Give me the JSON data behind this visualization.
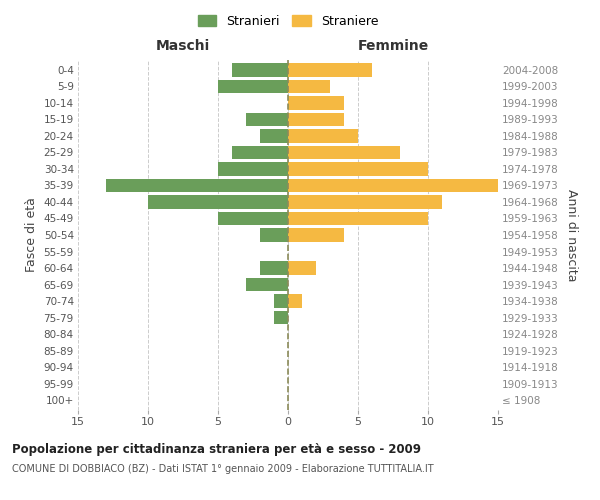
{
  "age_groups": [
    "100+",
    "95-99",
    "90-94",
    "85-89",
    "80-84",
    "75-79",
    "70-74",
    "65-69",
    "60-64",
    "55-59",
    "50-54",
    "45-49",
    "40-44",
    "35-39",
    "30-34",
    "25-29",
    "20-24",
    "15-19",
    "10-14",
    "5-9",
    "0-4"
  ],
  "birth_years": [
    "≤ 1908",
    "1909-1913",
    "1914-1918",
    "1919-1923",
    "1924-1928",
    "1929-1933",
    "1934-1938",
    "1939-1943",
    "1944-1948",
    "1949-1953",
    "1954-1958",
    "1959-1963",
    "1964-1968",
    "1969-1973",
    "1974-1978",
    "1979-1983",
    "1984-1988",
    "1989-1993",
    "1994-1998",
    "1999-2003",
    "2004-2008"
  ],
  "maschi": [
    0,
    0,
    0,
    0,
    0,
    1,
    1,
    3,
    2,
    0,
    2,
    5,
    10,
    13,
    5,
    4,
    2,
    3,
    0,
    5,
    4
  ],
  "femmine": [
    0,
    0,
    0,
    0,
    0,
    0,
    1,
    0,
    2,
    0,
    4,
    10,
    11,
    15,
    10,
    8,
    5,
    4,
    4,
    3,
    6
  ],
  "color_maschi": "#6a9e5a",
  "color_femmine": "#f5b942",
  "color_dashed_line": "#8b8b5a",
  "background_color": "#ffffff",
  "grid_color": "#cccccc",
  "title_main": "Popolazione per cittadinanza straniera per età e sesso - 2009",
  "title_sub": "COMUNE DI DOBBIACO (BZ) - Dati ISTAT 1° gennaio 2009 - Elaborazione TUTTITALIA.IT",
  "legend_maschi": "Stranieri",
  "legend_femmine": "Straniere",
  "xlabel_left": "Maschi",
  "xlabel_right": "Femmine",
  "ylabel_left": "Fasce di età",
  "ylabel_right": "Anni di nascita",
  "xlim": 15,
  "bar_height": 0.8
}
